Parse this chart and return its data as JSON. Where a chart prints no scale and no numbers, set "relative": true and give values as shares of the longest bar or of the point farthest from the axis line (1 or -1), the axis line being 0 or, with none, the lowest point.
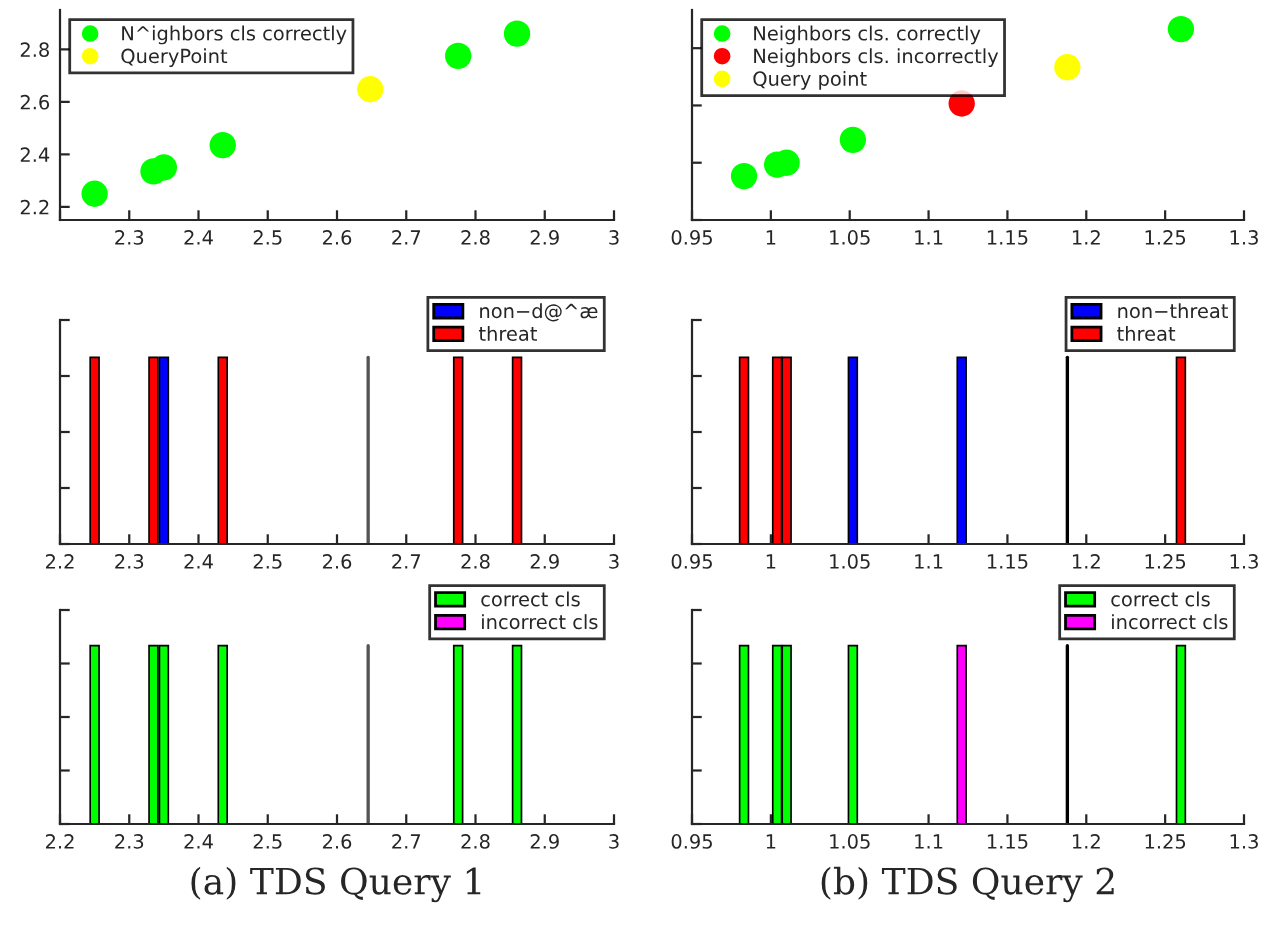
{
  "chart_data": [
    {
      "type": "scatter",
      "xlim": [
        2.2,
        3
      ],
      "xticks": [
        {
          "value": 2.2,
          "label": null
        },
        2.3,
        2.4,
        2.5,
        2.6,
        2.7,
        2.8,
        2.9,
        3
      ],
      "ylim": [
        2.15,
        2.95
      ],
      "yticks": [
        2.2,
        2.4,
        2.6,
        2.8
      ],
      "legend": "top left",
      "marker": "circle",
      "series": [
        {
          "name": "N^ighbors cls correctly",
          "color": "#00ff00",
          "x": [
            2.25,
            2.335,
            2.35,
            2.435,
            2.775,
            2.86
          ],
          "values": [
            2.25,
            2.335,
            2.35,
            2.435,
            2.775,
            2.86
          ]
        },
        {
          "name": "QueryPoint",
          "color": "#ffff00",
          "x": [
            2.648
          ],
          "values": [
            2.648
          ]
        }
      ]
    },
    {
      "type": "scatter",
      "relative": true,
      "xlim": [
        0.95,
        1.3
      ],
      "xticks": [
        0.95,
        1,
        1.05,
        1.1,
        1.15,
        1.2,
        1.25,
        1.3
      ],
      "tick_labels": "x",
      "legend": "top left",
      "marker": "circle",
      "series": [
        {
          "name": "Neighbors cls. correctly",
          "color": "#00ff00",
          "x": [
            0.983,
            1.004,
            1.01,
            1.052,
            1.26
          ],
          "values": [
            0.23,
            0.29,
            0.3,
            0.42,
            1
          ]
        },
        {
          "name": "Neighbors cls. incorrectly",
          "color": "#ff0000",
          "x": [
            1.121
          ],
          "values": [
            0.61
          ]
        },
        {
          "name": "Query point",
          "color": "#ffff00",
          "x": [
            1.188
          ],
          "values": [
            0.8
          ]
        }
      ]
    },
    {
      "type": "bar",
      "relative": true,
      "xlim": [
        2.2,
        3
      ],
      "xticks": [
        2.2,
        2.3,
        2.4,
        2.5,
        2.6,
        2.7,
        2.8,
        2.9,
        3
      ],
      "tick_labels": "x",
      "legend": "top right",
      "ref_lines": [
        {
          "axis": "x",
          "value": 2.645,
          "label": null,
          "color": "#555555"
        }
      ],
      "series": [
        {
          "name": "non−d@^æ",
          "color": "#0000ff",
          "x": [
            2.35
          ],
          "values": [
            1
          ]
        },
        {
          "name": "threat",
          "color": "#ff0000",
          "x": [
            2.25,
            2.335,
            2.435,
            2.775,
            2.86
          ],
          "values": [
            1,
            1,
            1,
            1,
            1
          ]
        }
      ]
    },
    {
      "type": "bar",
      "relative": true,
      "xlim": [
        0.95,
        1.3
      ],
      "xticks": [
        0.95,
        1,
        1.05,
        1.1,
        1.15,
        1.2,
        1.25,
        1.3
      ],
      "tick_labels": "x",
      "legend": "top right",
      "ref_lines": [
        {
          "axis": "x",
          "value": 1.188,
          "label": null,
          "color": "#000000"
        }
      ],
      "series": [
        {
          "name": "non−threat",
          "color": "#0000ff",
          "x": [
            1.052,
            1.121
          ],
          "values": [
            1,
            1
          ]
        },
        {
          "name": "threat",
          "color": "#ff0000",
          "x": [
            0.983,
            1.004,
            1.01,
            1.26
          ],
          "values": [
            1,
            1,
            1,
            1
          ]
        }
      ]
    },
    {
      "type": "bar",
      "relative": true,
      "xlim": [
        2.2,
        3
      ],
      "xticks": [
        2.2,
        2.3,
        2.4,
        2.5,
        2.6,
        2.7,
        2.8,
        2.9,
        3
      ],
      "tick_labels": "x",
      "legend": "top right",
      "ref_lines": [
        {
          "axis": "x",
          "value": 2.645,
          "label": null,
          "color": "#555555"
        }
      ],
      "annotations": [
        "(a) TDS Query 1"
      ],
      "series": [
        {
          "name": "correct cls",
          "color": "#00ff00",
          "x": [
            2.25,
            2.335,
            2.35,
            2.435,
            2.775,
            2.86
          ],
          "values": [
            1,
            1,
            1,
            1,
            1,
            1
          ]
        },
        {
          "name": "incorrect cls",
          "color": "#ff00ff"
        }
      ]
    },
    {
      "type": "bar",
      "relative": true,
      "xlim": [
        0.95,
        1.3
      ],
      "xticks": [
        0.95,
        1,
        1.05,
        1.1,
        1.15,
        1.2,
        1.25,
        1.3
      ],
      "tick_labels": "x",
      "legend": "top right",
      "ref_lines": [
        {
          "axis": "x",
          "value": 1.188,
          "label": null,
          "color": "#000000"
        }
      ],
      "annotations": [
        "(b) TDS Query 2"
      ],
      "series": [
        {
          "name": "correct cls",
          "color": "#00ff00",
          "x": [
            0.983,
            1.004,
            1.01,
            1.052,
            1.26
          ],
          "values": [
            1,
            1,
            1,
            1,
            1
          ]
        },
        {
          "name": "incorrect cls",
          "color": "#ff00ff",
          "x": [
            1.121
          ],
          "values": [
            1
          ]
        }
      ]
    }
  ]
}
